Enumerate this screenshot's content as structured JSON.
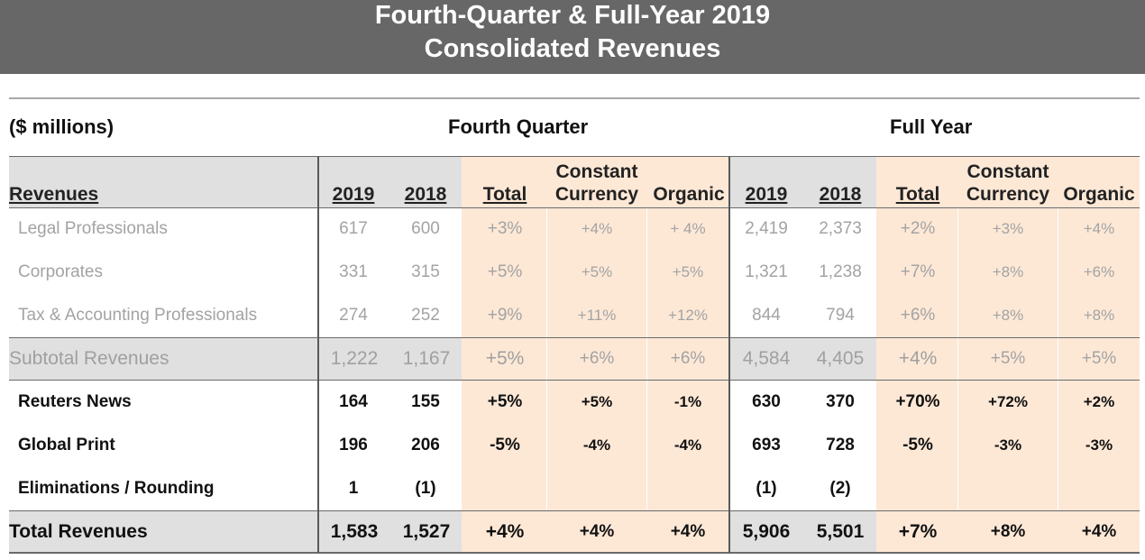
{
  "title": {
    "line1": "Fourth-Quarter & Full-Year 2019",
    "line2": "Consolidated Revenues"
  },
  "units": "($ millions)",
  "groups": {
    "fourth_quarter": "Fourth Quarter",
    "full_year": "Full Year"
  },
  "columns": {
    "revenues": "Revenues",
    "q_2019": "2019",
    "q_2018": "2018",
    "q_total": "Total",
    "q_cc_line1": "Constant",
    "q_cc_line2": "Currency",
    "q_organic": "Organic",
    "fy_2019": "2019",
    "fy_2018": "2018",
    "fy_total": "Total",
    "fy_cc_line1": "Constant",
    "fy_cc_line2": "Currency",
    "fy_organic": "Organic"
  },
  "rows": [
    {
      "label": "Legal Professionals",
      "values": [
        "617",
        "600",
        "+3%",
        "+4%",
        "+ 4%",
        "2,419",
        "2,373",
        "+2%",
        "+3%",
        "+4%"
      ]
    },
    {
      "label": "Corporates",
      "values": [
        "331",
        "315",
        "+5%",
        "+5%",
        "+5%",
        "1,321",
        "1,238",
        "+7%",
        "+8%",
        "+6%"
      ]
    },
    {
      "label": "Tax & Accounting Professionals",
      "values": [
        "274",
        "252",
        "+9%",
        "+11%",
        "+12%",
        "844",
        "794",
        "+6%",
        "+8%",
        "+8%"
      ]
    },
    {
      "label": "Subtotal Revenues",
      "values": [
        "1,222",
        "1,167",
        "+5%",
        "+6%",
        "+6%",
        "4,584",
        "4,405",
        "+4%",
        "+5%",
        "+5%"
      ]
    },
    {
      "label": "Reuters News",
      "values": [
        "164",
        "155",
        "+5%",
        "+5%",
        "-1%",
        "630",
        "370",
        "+70%",
        "+72%",
        "+2%"
      ]
    },
    {
      "label": "Global Print",
      "values": [
        "196",
        "206",
        "-5%",
        "-4%",
        "-4%",
        "693",
        "728",
        "-5%",
        "-3%",
        "-3%"
      ]
    },
    {
      "label": "Eliminations / Rounding",
      "values": [
        "1",
        "(1)",
        "",
        "",
        "",
        "(1)",
        "(2)",
        "",
        "",
        ""
      ]
    },
    {
      "label": "Total Revenues",
      "values": [
        "1,583",
        "1,527",
        "+4%",
        "+4%",
        "+4%",
        "5,906",
        "5,501",
        "+7%",
        "+8%",
        "+4%"
      ]
    }
  ]
}
